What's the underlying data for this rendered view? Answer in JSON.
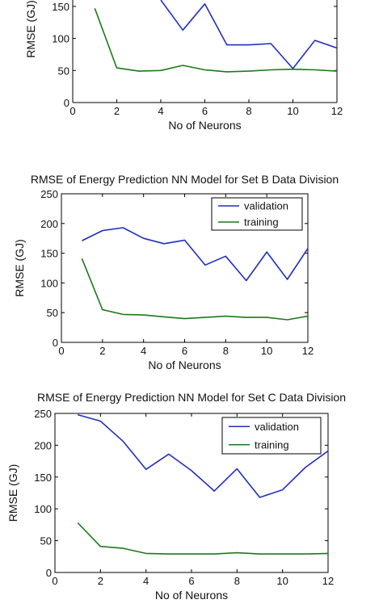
{
  "chart_data": [
    {
      "type": "line",
      "title": "",
      "xlabel": "No of Neurons",
      "ylabel": "RMSE (GJ)",
      "xlim": [
        0,
        12
      ],
      "ylim": [
        0,
        160
      ],
      "xticks": [
        0,
        2,
        4,
        6,
        8,
        10,
        12
      ],
      "yticks": [
        0,
        50,
        100,
        150
      ],
      "grid": false,
      "legend": "none",
      "series": [
        {
          "color": "#1f2fbf",
          "x": [
            1,
            2,
            3,
            4,
            5,
            6,
            7,
            8,
            9,
            10,
            11,
            12
          ],
          "y": [
            null,
            null,
            null,
            160,
            113,
            154,
            90,
            90,
            92,
            53,
            97,
            85
          ]
        },
        {
          "color": "#1a7a1a",
          "x": [
            1,
            2,
            3,
            4,
            5,
            6,
            7,
            8,
            9,
            10,
            11,
            12
          ],
          "y": [
            147,
            54,
            49,
            50,
            58,
            51,
            48,
            49,
            51,
            52,
            51,
            49
          ]
        }
      ]
    },
    {
      "type": "line",
      "title": "RMSE of Energy Prediction NN Model for Set B Data Division",
      "xlabel": "No of Neurons",
      "ylabel": "RMSE (GJ)",
      "xlim": [
        0,
        12
      ],
      "ylim": [
        0,
        250
      ],
      "xticks": [
        0,
        2,
        4,
        6,
        8,
        10,
        12
      ],
      "yticks": [
        0,
        50,
        100,
        150,
        200,
        250
      ],
      "grid": false,
      "legend": "top-right",
      "series": [
        {
          "name": "validation",
          "color": "#1f2fbf",
          "x": [
            1,
            2,
            3,
            4,
            5,
            6,
            7,
            8,
            9,
            10,
            11,
            12
          ],
          "y": [
            171,
            188,
            193,
            175,
            166,
            172,
            130,
            145,
            104,
            152,
            106,
            158
          ]
        },
        {
          "name": "training",
          "color": "#1a7a1a",
          "x": [
            1,
            2,
            3,
            4,
            5,
            6,
            7,
            8,
            9,
            10,
            11,
            12
          ],
          "y": [
            141,
            55,
            47,
            46,
            43,
            40,
            42,
            44,
            42,
            42,
            38,
            44
          ]
        }
      ]
    },
    {
      "type": "line",
      "title": "RMSE of Energy Prediction NN Model for Set C Data Division",
      "xlabel": "No of Neurons",
      "ylabel": "RMSE (GJ)",
      "xlim": [
        0,
        12
      ],
      "ylim": [
        0,
        250
      ],
      "xticks": [
        0,
        2,
        4,
        6,
        8,
        10,
        12
      ],
      "yticks": [
        0,
        50,
        100,
        150,
        200,
        250
      ],
      "grid": false,
      "legend": "top-right",
      "series": [
        {
          "name": "validation",
          "color": "#1f2fbf",
          "x": [
            1,
            2,
            3,
            4,
            5,
            6,
            7,
            8,
            9,
            10,
            11,
            12
          ],
          "y": [
            248,
            238,
            206,
            162,
            186,
            160,
            128,
            163,
            118,
            130,
            165,
            191
          ]
        },
        {
          "name": "training",
          "color": "#1a7a1a",
          "x": [
            1,
            2,
            3,
            4,
            5,
            6,
            7,
            8,
            9,
            10,
            11,
            12
          ],
          "y": [
            78,
            41,
            38,
            30,
            29,
            29,
            29,
            31,
            29,
            29,
            29,
            30
          ]
        }
      ]
    }
  ]
}
